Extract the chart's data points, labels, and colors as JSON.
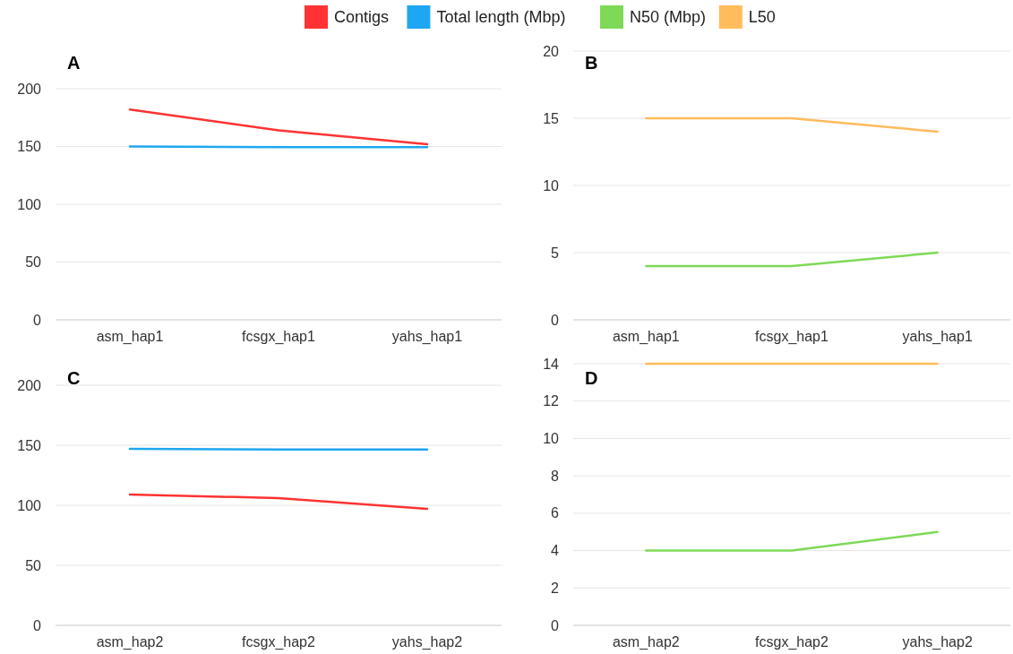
{
  "chart_data": [
    {
      "type": "line",
      "title": "A",
      "categories": [
        "asm_hap1",
        "fcsgx_hap1",
        "yahs_hap1"
      ],
      "series": [
        {
          "name": "Contigs",
          "color": "#ff3333",
          "values": [
            182,
            164,
            152
          ]
        },
        {
          "name": "Total length (Mbp)",
          "color": "#1ea7f0",
          "values": [
            150,
            149.5,
            149.5
          ]
        }
      ],
      "ylim": [
        0,
        200
      ],
      "yticks": [
        0,
        50,
        100,
        150,
        200
      ],
      "grid": "y",
      "legend": "top"
    },
    {
      "type": "line",
      "title": "B",
      "categories": [
        "asm_hap1",
        "fcsgx_hap1",
        "yahs_hap1"
      ],
      "series": [
        {
          "name": "N50 (Mbp)",
          "color": "#7ed957",
          "values": [
            4,
            4,
            5
          ]
        },
        {
          "name": "L50",
          "color": "#ffbb5c",
          "values": [
            15,
            15,
            14
          ]
        }
      ],
      "ylim": [
        0,
        20
      ],
      "yticks": [
        0,
        5,
        10,
        15,
        20
      ],
      "grid": "y",
      "legend": "top"
    },
    {
      "type": "line",
      "title": "C",
      "categories": [
        "asm_hap2",
        "fcsgx_hap2",
        "yahs_hap2"
      ],
      "series": [
        {
          "name": "Contigs",
          "color": "#ff3333",
          "values": [
            109,
            106,
            97
          ]
        },
        {
          "name": "Total length (Mbp)",
          "color": "#1ea7f0",
          "values": [
            147,
            146.5,
            146.5
          ]
        }
      ],
      "ylim": [
        0,
        200
      ],
      "yticks": [
        0,
        50,
        100,
        150,
        200
      ],
      "grid": "y",
      "legend": "top"
    },
    {
      "type": "line",
      "title": "D",
      "categories": [
        "asm_hap2",
        "fcsgx_hap2",
        "yahs_hap2"
      ],
      "series": [
        {
          "name": "N50 (Mbp)",
          "color": "#7ed957",
          "values": [
            4,
            4,
            5
          ]
        },
        {
          "name": "L50",
          "color": "#ffbb5c",
          "values": [
            14,
            14,
            14
          ]
        }
      ],
      "ylim": [
        0,
        14
      ],
      "yticks": [
        0,
        2,
        4,
        6,
        8,
        10,
        12,
        14
      ],
      "grid": "y",
      "legend": "top"
    }
  ]
}
